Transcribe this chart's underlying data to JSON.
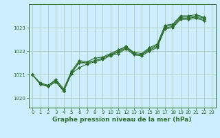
{
  "title": "Graphe pression niveau de la mer (hPa)",
  "bg_color": "#cceeff",
  "grid_color": "#aaccbb",
  "line_color": "#2d6e2d",
  "xlim": [
    -0.5,
    23.5
  ],
  "ylim": [
    1019.6,
    1024.0
  ],
  "yticks": [
    1020,
    1021,
    1022,
    1023
  ],
  "xticks": [
    0,
    1,
    2,
    3,
    4,
    5,
    6,
    7,
    8,
    9,
    10,
    11,
    12,
    13,
    14,
    15,
    16,
    17,
    18,
    19,
    20,
    21,
    22,
    23
  ],
  "series": [
    [
      1021.0,
      1020.6,
      1020.5,
      1020.7,
      1020.3,
      1021.05,
      1021.55,
      1021.5,
      1021.6,
      1021.7,
      1021.85,
      1021.95,
      1022.15,
      1021.9,
      1021.85,
      1022.05,
      1022.2,
      1023.0,
      1023.05,
      1023.4,
      1023.4,
      1023.45,
      1023.35
    ],
    [
      1021.0,
      1020.6,
      1020.5,
      1020.7,
      1020.3,
      1021.05,
      1021.3,
      1021.45,
      1021.55,
      1021.65,
      1021.8,
      1021.9,
      1022.1,
      1021.85,
      1021.8,
      1022.0,
      1022.15,
      1022.95,
      1023.0,
      1023.35,
      1023.35,
      1023.4,
      1023.3
    ],
    [
      1021.0,
      1020.6,
      1020.55,
      1020.75,
      1020.35,
      1021.1,
      1021.5,
      1021.5,
      1021.6,
      1021.7,
      1021.85,
      1022.0,
      1022.2,
      1021.9,
      1021.85,
      1022.1,
      1022.25,
      1023.05,
      1023.1,
      1023.45,
      1023.45,
      1023.5,
      1023.4
    ],
    [
      1021.0,
      1020.65,
      1020.55,
      1020.8,
      1020.4,
      1021.15,
      1021.6,
      1021.55,
      1021.7,
      1021.75,
      1021.9,
      1022.05,
      1022.2,
      1021.95,
      1021.9,
      1022.15,
      1022.3,
      1023.1,
      1023.15,
      1023.5,
      1023.5,
      1023.55,
      1023.45
    ]
  ],
  "title_fontsize": 6.5,
  "tick_fontsize": 5.0,
  "xlabel_fontsize": 6.5
}
